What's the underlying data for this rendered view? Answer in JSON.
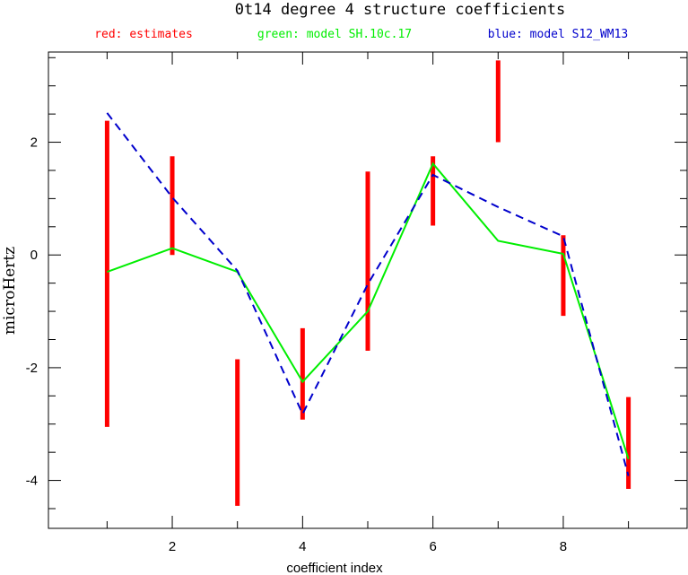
{
  "chart_data": {
    "type": "line",
    "title": "0t14 degree 4 structure coefficients",
    "xlabel": "coefficient index",
    "ylabel": "microHertz",
    "xlim": [
      0.1,
      9.9
    ],
    "ylim": [
      -4.85,
      3.6
    ],
    "x_ticks": [
      2,
      4,
      6,
      8
    ],
    "y_ticks": [
      -4,
      -2,
      0,
      2
    ],
    "legend": [
      {
        "text": "red: estimates",
        "color": "#ff0000"
      },
      {
        "text": "green: model SH.10c.17",
        "color": "#00ee00"
      },
      {
        "text": "blue: model S12_WM13",
        "color": "#0000cc"
      }
    ],
    "estimates": {
      "name": "estimates",
      "color": "#ff0000",
      "x": [
        1,
        2,
        3,
        4,
        5,
        6,
        7,
        8,
        9
      ],
      "low": [
        -3.05,
        0.0,
        -4.45,
        -2.92,
        -1.7,
        0.52,
        2.0,
        -1.08,
        -4.15
      ],
      "high": [
        2.38,
        1.75,
        -1.85,
        -1.3,
        1.48,
        1.75,
        3.45,
        0.35,
        -2.52
      ]
    },
    "series": [
      {
        "name": "model SH.10c.17",
        "color": "#00ee00",
        "style": "solid",
        "x": [
          1,
          2,
          3,
          4,
          5,
          6,
          7,
          8,
          9
        ],
        "y": [
          -0.3,
          0.12,
          -0.3,
          -2.25,
          -1.0,
          1.62,
          0.25,
          0.02,
          -3.62
        ]
      },
      {
        "name": "model S12_WM13",
        "color": "#0000cc",
        "style": "dashed",
        "x": [
          1,
          2,
          3,
          4,
          5,
          6,
          7,
          8,
          9
        ],
        "y": [
          2.52,
          1.02,
          -0.28,
          -2.82,
          -0.52,
          1.42,
          0.85,
          0.33,
          -3.92
        ]
      }
    ]
  }
}
